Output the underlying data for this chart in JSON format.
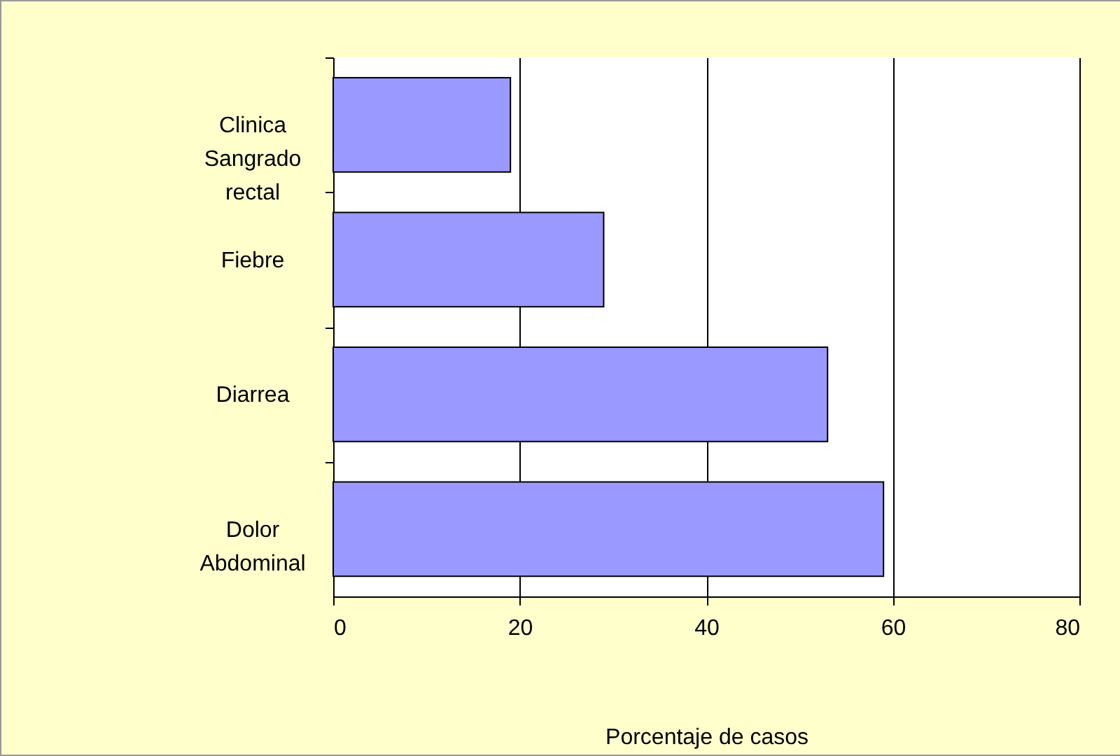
{
  "chart_data": {
    "type": "bar",
    "orientation": "horizontal",
    "categories": [
      "Clinica Sangrado rectal",
      "Fiebre",
      "Diarrea",
      "Dolor Abdominal"
    ],
    "values": [
      19,
      29,
      53,
      59
    ],
    "color": "#9999ff",
    "xlabel": "Porcentaje de casos",
    "xlim": [
      0,
      80
    ],
    "xticks": [
      0,
      20,
      40,
      60,
      80
    ],
    "grid": "x"
  }
}
